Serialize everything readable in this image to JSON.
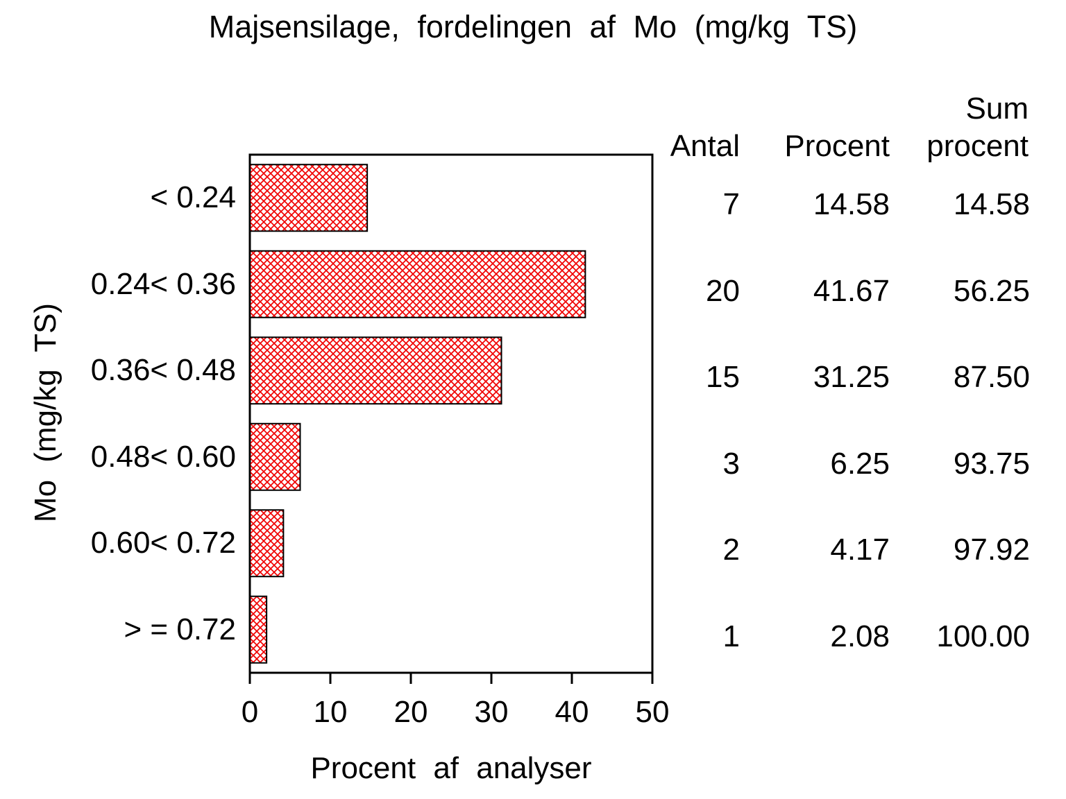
{
  "title": "Majsensilage, fordelingen af Mo (mg/kg TS)",
  "chart_data": {
    "type": "bar",
    "orientation": "horizontal",
    "title": "Majsensilage, fordelingen af Mo (mg/kg TS)",
    "xlabel": "Procent af analyser",
    "ylabel": "Mo (mg/kg TS)",
    "categories": [
      "< 0.24",
      "0.24< 0.36",
      "0.36< 0.48",
      "0.48< 0.60",
      "0.60< 0.72",
      "> = 0.72"
    ],
    "values": [
      14.58,
      41.67,
      31.25,
      6.25,
      4.17,
      2.08
    ],
    "counts": [
      7,
      20,
      15,
      3,
      2,
      1
    ],
    "cum_percent": [
      14.58,
      56.25,
      87.5,
      93.75,
      97.92,
      100.0
    ],
    "xlim": [
      0,
      50
    ],
    "xticks": [
      0,
      10,
      20,
      30,
      40,
      50
    ],
    "grid": false,
    "legend": "none",
    "bar_pattern": "red-diagonal-crosshatch",
    "bar_pattern_color": "#f00000",
    "bar_border_color": "#000000",
    "frame_color": "#000000",
    "background_color": "#ffffff"
  },
  "table": {
    "headers": {
      "antal": "Antal",
      "procent": "Procent",
      "sum_line1": "Sum",
      "sum_line2": "procent"
    },
    "rows": [
      {
        "antal": "7",
        "procent": "14.58",
        "sum": "14.58"
      },
      {
        "antal": "20",
        "procent": "41.67",
        "sum": "56.25"
      },
      {
        "antal": "15",
        "procent": "31.25",
        "sum": "87.50"
      },
      {
        "antal": "3",
        "procent": "6.25",
        "sum": "93.75"
      },
      {
        "antal": "2",
        "procent": "4.17",
        "sum": "97.92"
      },
      {
        "antal": "1",
        "procent": "2.08",
        "sum": "100.00"
      }
    ]
  }
}
